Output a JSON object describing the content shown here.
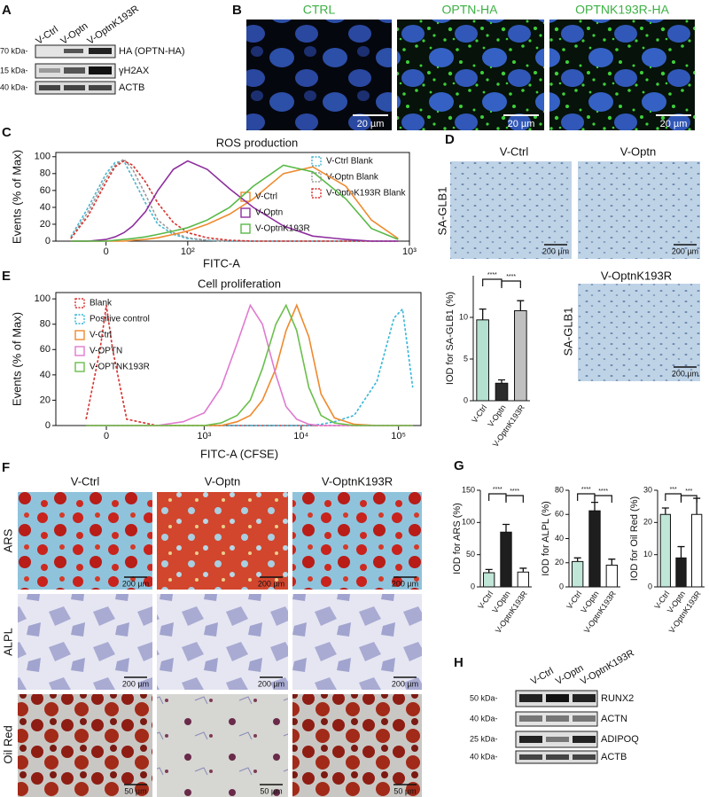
{
  "panel_labels": [
    "A",
    "B",
    "C",
    "D",
    "E",
    "F",
    "G",
    "H"
  ],
  "blot_a": {
    "lanes": [
      "V-Ctrl",
      "V-Optn",
      "V-OptnK193R"
    ],
    "markers": [
      "70 kDa-",
      "15 kDa-",
      "40 kDa-"
    ],
    "bands": [
      "HA (OPTN-HA)",
      "γH2AX",
      "ACTB"
    ]
  },
  "images_b": {
    "titles": [
      "CTRL",
      "OPTN-HA",
      "OPTNK193R-HA"
    ],
    "scale_bars": [
      "20 µm",
      "20 µm",
      "20 µm"
    ]
  },
  "images_d": {
    "titles": [
      "V-Ctrl",
      "V-Optn",
      "V-OptnK193R"
    ],
    "stain_labels": [
      "SA-GLB1",
      "SA-GLB1"
    ],
    "scale_bars": [
      "200 µm",
      "200 µm",
      "200 µm"
    ]
  },
  "images_f": {
    "columns": [
      "V-Ctrl",
      "V-Optn",
      "V-OptnK193R"
    ],
    "rows": [
      "ARS",
      "ALPL",
      "Oil Red"
    ],
    "scale_bars": [
      [
        "200 µm",
        "200 µm",
        "200 µm"
      ],
      [
        "200 µm",
        "200 µm",
        "200 µm"
      ],
      [
        "50 µm",
        "50 µm",
        "50 µm"
      ]
    ]
  },
  "blot_h": {
    "lanes": [
      "V-Ctrl",
      "V-Optn",
      "V-OptnK193R"
    ],
    "markers": [
      "50 kDa-",
      "40 kDa-",
      "25 kDa-",
      "40 kDa-"
    ],
    "bands": [
      "RUNX2",
      "ACTN",
      "ADIPOQ",
      "ACTB"
    ]
  },
  "chart_data": [
    {
      "type": "line",
      "title": "ROS production",
      "x_label": "FITC-A",
      "y_label": "Events (% of Max)",
      "x_scale": "asinh",
      "x_scale_width": 120,
      "x": [
        -40,
        -20,
        0,
        10,
        20,
        30,
        45,
        60,
        80,
        100,
        130,
        170,
        220,
        300,
        400,
        550,
        700,
        900
      ],
      "xlim": [
        -58,
        1000
      ],
      "xticks": [
        0,
        {
          "value": 100,
          "label": "10²"
        },
        {
          "value": 1000,
          "label": "10³"
        }
      ],
      "ylim": [
        0,
        105
      ],
      "yticks": [
        0,
        20,
        40,
        60,
        80,
        100
      ],
      "series": [
        {
          "name": "V-Ctrl Blank",
          "color": "#45b5d1",
          "dashed": true,
          "values": [
            5,
            40,
            80,
            93,
            95,
            75,
            45,
            20,
            8,
            3,
            1,
            0,
            0,
            0,
            0,
            0,
            0,
            0
          ]
        },
        {
          "name": "V-Optn Blank",
          "color": "#9a9a9a",
          "dashed": true,
          "values": [
            3,
            35,
            75,
            90,
            97,
            85,
            55,
            25,
            10,
            4,
            1,
            0,
            0,
            0,
            0,
            0,
            0,
            0
          ]
        },
        {
          "name": "V-OptnK193R Blank",
          "color": "#d7312e",
          "dashed": true,
          "values": [
            3,
            30,
            70,
            88,
            95,
            90,
            70,
            45,
            22,
            10,
            4,
            1,
            0,
            0,
            0,
            0,
            0,
            0
          ]
        },
        {
          "name": "V-Ctrl",
          "color": "#ef8a2e",
          "dashed": false,
          "values": [
            0,
            0,
            0,
            0,
            0,
            1,
            2,
            4,
            8,
            12,
            20,
            32,
            50,
            80,
            88,
            65,
            25,
            3
          ]
        },
        {
          "name": "V-Optn",
          "color": "#8e2f9e",
          "dashed": false,
          "values": [
            0,
            0,
            2,
            5,
            10,
            18,
            35,
            60,
            85,
            95,
            85,
            62,
            40,
            18,
            6,
            2,
            0,
            0
          ]
        },
        {
          "name": "V-OptnK193R",
          "color": "#58b947",
          "dashed": false,
          "values": [
            0,
            0,
            0,
            1,
            2,
            3,
            5,
            8,
            12,
            16,
            25,
            40,
            65,
            90,
            82,
            50,
            15,
            2
          ]
        }
      ]
    },
    {
      "type": "line",
      "title": "Cell proliferation",
      "x_label": "FITC-A (CFSE)",
      "y_label": "Events (% of Max)",
      "x_scale": "asinh",
      "x_scale_width": 200,
      "x": [
        -100,
        -30,
        0,
        30,
        100,
        300,
        600,
        1000,
        1500,
        2200,
        3000,
        4000,
        5500,
        7000,
        9000,
        12000,
        16000,
        22000,
        35000,
        60000,
        90000,
        110000,
        140000
      ],
      "xlim": [
        -300,
        170000
      ],
      "xticks": [
        0,
        {
          "value": 1000,
          "label": "10³"
        },
        {
          "value": 10000,
          "label": "10⁴"
        },
        {
          "value": 100000,
          "label": "10⁵"
        }
      ],
      "ylim": [
        0,
        105
      ],
      "yticks": [
        0,
        20,
        40,
        60,
        80,
        100
      ],
      "series": [
        {
          "name": "Blank",
          "color": "#d7312e",
          "dashed": true,
          "values": [
            5,
            60,
            95,
            60,
            5,
            0,
            0,
            0,
            0,
            0,
            0,
            0,
            0,
            0,
            0,
            0,
            0,
            0,
            0,
            0,
            0,
            0,
            0
          ]
        },
        {
          "name": "Positive control",
          "color": "#36b6d8",
          "dashed": true,
          "values": [
            0,
            0,
            0,
            0,
            0,
            0,
            0,
            0,
            0,
            0,
            0,
            0,
            0,
            0,
            0,
            0,
            1,
            3,
            8,
            35,
            85,
            92,
            30
          ]
        },
        {
          "name": "V-Ctrl",
          "color": "#ef8a2e",
          "dashed": false,
          "values": [
            0,
            0,
            0,
            0,
            0,
            0,
            0,
            0,
            0,
            3,
            8,
            20,
            45,
            75,
            95,
            70,
            25,
            6,
            1,
            0,
            0,
            0,
            0
          ]
        },
        {
          "name": "V-OPTN",
          "color": "#e07ad0",
          "dashed": false,
          "values": [
            0,
            0,
            0,
            0,
            0,
            0,
            3,
            10,
            30,
            65,
            95,
            80,
            40,
            15,
            5,
            1,
            0,
            0,
            0,
            0,
            0,
            0,
            0
          ]
        },
        {
          "name": "V-OPTNK193R",
          "color": "#6abf4b",
          "dashed": false,
          "values": [
            0,
            0,
            0,
            0,
            0,
            0,
            0,
            0,
            2,
            8,
            20,
            45,
            80,
            95,
            75,
            30,
            8,
            2,
            0,
            0,
            0,
            0,
            0
          ]
        }
      ]
    },
    {
      "type": "bar",
      "y_label": "IOD for SA-GLB1 (%)",
      "categories": [
        "V-Ctrl",
        "V-Optn",
        "V-OptnK193R"
      ],
      "values": [
        9.7,
        2.1,
        10.8
      ],
      "errors": [
        1.3,
        0.4,
        1.2
      ],
      "colors": [
        "#b4e0cf",
        "#2b2b2b",
        "#c0c0c0"
      ],
      "ylim": [
        0,
        15
      ],
      "yticks": [
        0,
        5,
        10
      ],
      "annotations": [
        "****",
        "****"
      ]
    },
    {
      "type": "bar",
      "y_label": "IOD for ARS (%)",
      "categories": [
        "V-Ctrl",
        "V-Optn",
        "V-OptnK193R"
      ],
      "values": [
        22,
        85,
        23
      ],
      "errors": [
        5,
        12,
        6
      ],
      "colors": [
        "#bfe6d6",
        "#1e1e1e",
        "#ffffff"
      ],
      "ylim": [
        0,
        150
      ],
      "yticks": [
        0,
        50,
        100,
        150
      ],
      "annotations": [
        "****",
        "****"
      ]
    },
    {
      "type": "bar",
      "y_label": "IOD for ALPL (%)",
      "categories": [
        "V-Ctrl",
        "V-Optn",
        "V-OptnK193R"
      ],
      "values": [
        21,
        63,
        18
      ],
      "errors": [
        3,
        7,
        5
      ],
      "colors": [
        "#bfe6d6",
        "#1e1e1e",
        "#ffffff"
      ],
      "ylim": [
        0,
        80
      ],
      "yticks": [
        0,
        20,
        40,
        60,
        80
      ],
      "annotations": [
        "****",
        "****"
      ]
    },
    {
      "type": "bar",
      "y_label": "IOD for Oil Red (%)",
      "categories": [
        "V-Ctrl",
        "V-Optn",
        "V-OptnK193R"
      ],
      "values": [
        22.5,
        9,
        22.5
      ],
      "errors": [
        2,
        3.5,
        5
      ],
      "colors": [
        "#bfe6d6",
        "#1e1e1e",
        "#ffffff"
      ],
      "ylim": [
        0,
        30
      ],
      "yticks": [
        0,
        10,
        20,
        30
      ],
      "annotations": [
        "***",
        "***"
      ]
    }
  ]
}
